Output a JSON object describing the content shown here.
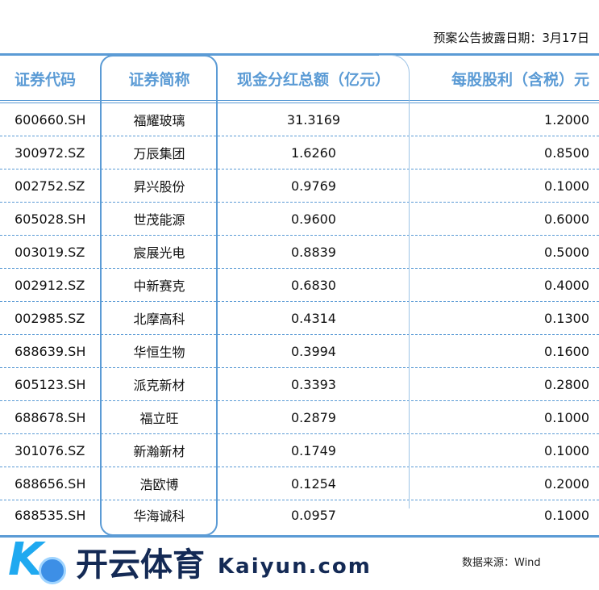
{
  "date_label": "预案公告披露日期：3月17日",
  "headers": [
    "证券代码",
    "证券简称",
    "现金分红总额（亿元）",
    "每股股利（含税）元"
  ],
  "rows": [
    [
      "600660.SH",
      "福耀玻璃",
      "31.3169",
      "1.2000"
    ],
    [
      "300972.SZ",
      "万辰集团",
      "1.6260",
      "0.8500"
    ],
    [
      "002752.SZ",
      "昇兴股份",
      "0.9769",
      "0.1000"
    ],
    [
      "605028.SH",
      "世茂能源",
      "0.9600",
      "0.6000"
    ],
    [
      "003019.SZ",
      "宸展光电",
      "0.8839",
      "0.5000"
    ],
    [
      "002912.SZ",
      "中新赛克",
      "0.6830",
      "0.4000"
    ],
    [
      "002985.SZ",
      "北摩高科",
      "0.4314",
      "0.1300"
    ],
    [
      "688639.SH",
      "华恒生物",
      "0.3994",
      "0.1600"
    ],
    [
      "605123.SH",
      "派克新材",
      "0.3393",
      "0.2800"
    ],
    [
      "688678.SH",
      "福立旺",
      "0.2879",
      "0.1000"
    ],
    [
      "301076.SZ",
      "新瀚新材",
      "0.1749",
      "0.1000"
    ],
    [
      "688656.SH",
      "浩欧博",
      "0.1254",
      "0.2000"
    ],
    [
      "688535.SH",
      "华海诚科",
      "0.0957",
      "0.1000"
    ]
  ],
  "source": "数据来源：Wind",
  "watermark": {
    "cn": "开云体育",
    "en": "Kaiyun.com"
  },
  "colors": {
    "accent": "#5b9bd5"
  }
}
